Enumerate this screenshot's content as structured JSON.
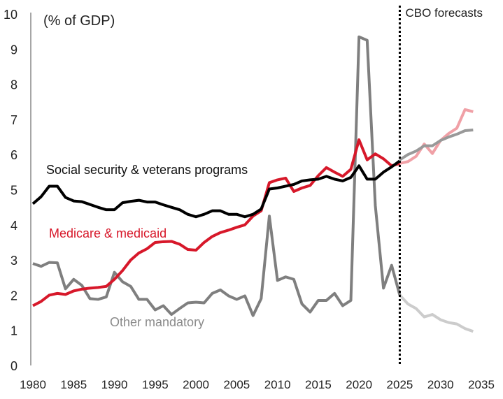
{
  "chart_data": {
    "type": "line",
    "title": "",
    "ylabel": "(% of GDP)",
    "xlabel": "",
    "xlim": [
      1980,
      2035
    ],
    "ylim": [
      0,
      10
    ],
    "x_ticks": [
      "1980",
      "1985",
      "1990",
      "1995",
      "2000",
      "2005",
      "2010",
      "2015",
      "2020",
      "2025",
      "2030",
      "2035"
    ],
    "y_ticks": [
      "0",
      "1",
      "2",
      "3",
      "4",
      "5",
      "6",
      "7",
      "8",
      "9",
      "10"
    ],
    "grid": false,
    "forecast_marker": {
      "x": 2025,
      "label": "CBO forecasts"
    },
    "series": [
      {
        "name": "Social security & veterans programs",
        "color": "#000000",
        "forecast_color": "#999999",
        "x_start": 1980,
        "values": [
          4.6,
          4.8,
          5.1,
          5.1,
          4.78,
          4.68,
          4.66,
          4.58,
          4.5,
          4.43,
          4.43,
          4.63,
          4.67,
          4.7,
          4.65,
          4.65,
          4.57,
          4.5,
          4.43,
          4.3,
          4.23,
          4.3,
          4.4,
          4.4,
          4.3,
          4.3,
          4.23,
          4.3,
          4.45,
          5.02,
          5.05,
          5.1,
          5.15,
          5.25,
          5.28,
          5.3,
          5.38,
          5.3,
          5.25,
          5.35,
          5.68,
          5.3,
          5.3,
          5.5,
          5.65,
          5.82
        ],
        "forecast_x_start": 2025,
        "forecast": [
          5.85,
          6.0,
          6.1,
          6.25,
          6.25,
          6.4,
          6.5,
          6.58,
          6.68,
          6.7
        ]
      },
      {
        "name": "Medicare & medicaid",
        "color": "#d7182a",
        "forecast_color": "#f0a0a6",
        "x_start": 1980,
        "values": [
          1.7,
          1.82,
          2.0,
          2.05,
          2.02,
          2.12,
          2.17,
          2.2,
          2.22,
          2.25,
          2.45,
          2.7,
          3.0,
          3.2,
          3.32,
          3.5,
          3.52,
          3.53,
          3.45,
          3.3,
          3.28,
          3.5,
          3.67,
          3.78,
          3.85,
          3.93,
          4.0,
          4.25,
          4.4,
          5.2,
          5.28,
          5.33,
          4.95,
          5.05,
          5.12,
          5.4,
          5.63,
          5.5,
          5.38,
          5.58,
          6.42,
          5.85,
          6.02,
          5.88,
          5.68,
          5.75
        ],
        "forecast_x_start": 2025,
        "forecast": [
          5.75,
          5.8,
          5.95,
          6.3,
          6.03,
          6.4,
          6.6,
          6.75,
          7.28,
          7.22
        ]
      },
      {
        "name": "Other mandatory",
        "color": "#7f7f7f",
        "forecast_color": "#cccccc",
        "x_start": 1980,
        "values": [
          2.9,
          2.82,
          2.93,
          2.92,
          2.18,
          2.45,
          2.28,
          1.9,
          1.88,
          1.95,
          2.65,
          2.38,
          2.25,
          1.88,
          1.88,
          1.58,
          1.7,
          1.45,
          1.62,
          1.78,
          1.8,
          1.78,
          2.05,
          2.15,
          1.98,
          1.88,
          1.98,
          1.42,
          1.9,
          4.25,
          2.42,
          2.52,
          2.45,
          1.75,
          1.52,
          1.85,
          1.85,
          2.05,
          1.7,
          1.85,
          9.35,
          9.25,
          4.55,
          2.2,
          2.85,
          2.0
        ],
        "forecast_x_start": 2025,
        "forecast": [
          2.0,
          1.75,
          1.62,
          1.38,
          1.45,
          1.3,
          1.22,
          1.18,
          1.05,
          0.97
        ]
      }
    ]
  }
}
